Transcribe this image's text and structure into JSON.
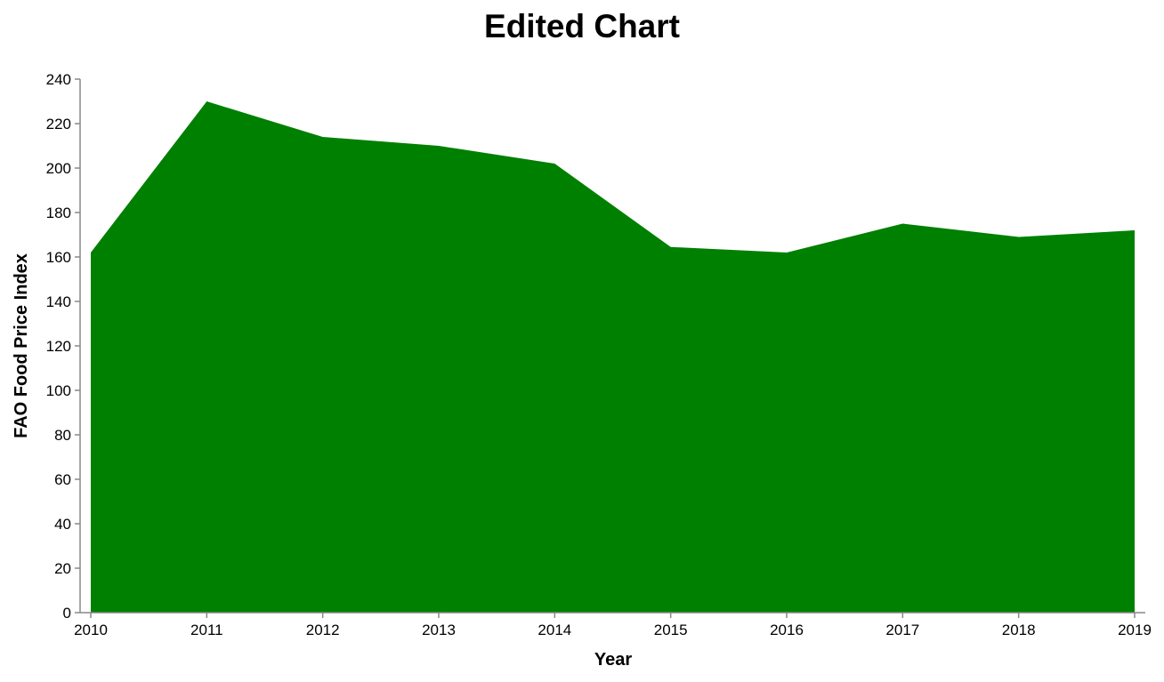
{
  "chart_data": {
    "type": "area",
    "title": "Edited Chart",
    "xlabel": "Year",
    "ylabel": "FAO Food Price Index",
    "x": [
      "2010",
      "2011",
      "2012",
      "2013",
      "2014",
      "2015",
      "2016",
      "2017",
      "2018",
      "2019"
    ],
    "series": [
      {
        "values": [
          162,
          230,
          214,
          210,
          202,
          164.5,
          162,
          175,
          169,
          172
        ],
        "color": "#008000"
      }
    ],
    "ylim": [
      0,
      240
    ],
    "yticks": [
      0,
      20,
      40,
      60,
      80,
      100,
      120,
      140,
      160,
      180,
      200,
      220,
      240
    ],
    "grid": false,
    "legend": "none"
  }
}
